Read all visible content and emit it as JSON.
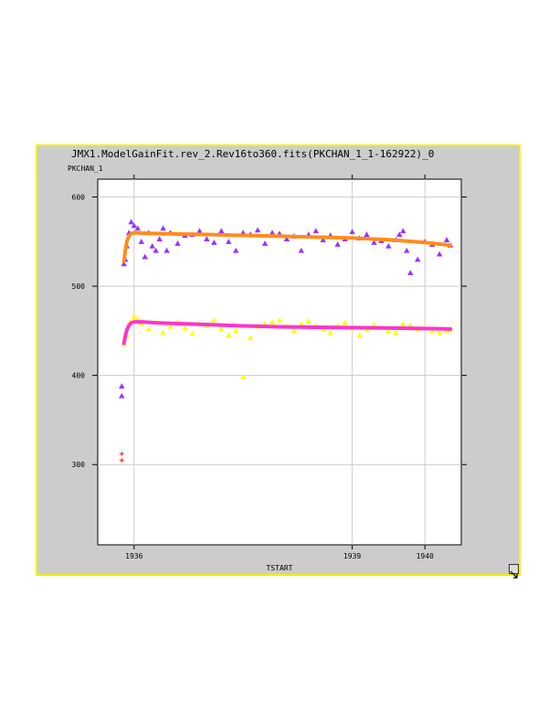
{
  "colors": {
    "panel_bg": "#cccccc",
    "panel_border": "#f0f000",
    "plot_bg": "#ffffff",
    "grid": "#cccccc",
    "series_purple": "#9b30ff",
    "series_yellow": "#ffff00",
    "fit_orange": "#ff8c1a",
    "fit_magenta": "#ff33cc",
    "outlier_red": "#ff2020"
  },
  "icons": {
    "resize": "resize-arrow-icon"
  },
  "chart_data": {
    "type": "scatter",
    "title": "JMX1.ModelGainFit.rev_2.Rev16to360.fits(PKCHAN_1_1-162922)_0",
    "ylabel": "PKCHAN_1",
    "xlabel": "TSTART",
    "xlim": [
      1935.5,
      1940.5
    ],
    "ylim": [
      210,
      620
    ],
    "xticks": [
      1936,
      1939,
      1940
    ],
    "xtick_labels": [
      "1936",
      "1939",
      "1940"
    ],
    "yticks": [
      300,
      400,
      500,
      600
    ],
    "ytick_labels": [
      "300",
      "400",
      "500",
      "600"
    ],
    "grid": true,
    "series": [
      {
        "marker": "triangle",
        "color": "#9b30ff",
        "x": [
          1935.86,
          1935.88,
          1935.9,
          1935.93,
          1935.96,
          1936.0,
          1936.05,
          1936.1,
          1936.15,
          1936.2,
          1936.25,
          1936.3,
          1936.35,
          1936.4,
          1936.45,
          1936.5,
          1936.6,
          1936.7,
          1936.8,
          1936.9,
          1937.0,
          1937.1,
          1937.2,
          1937.3,
          1937.4,
          1937.5,
          1937.6,
          1937.7,
          1937.8,
          1937.9,
          1938.0,
          1938.1,
          1938.2,
          1938.3,
          1938.4,
          1938.5,
          1938.6,
          1938.7,
          1938.8,
          1938.9,
          1939.0,
          1939.1,
          1939.2,
          1939.3,
          1939.4,
          1939.5,
          1939.6,
          1939.65,
          1939.7,
          1939.75,
          1939.8,
          1939.9,
          1940.0,
          1940.1,
          1940.2,
          1940.3,
          1940.35
        ],
        "y": [
          525,
          530,
          545,
          560,
          572,
          568,
          565,
          550,
          533,
          560,
          545,
          540,
          553,
          565,
          540,
          560,
          548,
          557,
          558,
          562,
          553,
          549,
          562,
          550,
          540,
          560,
          558,
          563,
          548,
          560,
          559,
          553,
          556,
          540,
          558,
          562,
          552,
          557,
          547,
          553,
          561,
          554,
          558,
          549,
          551,
          545,
          552,
          558,
          562,
          540,
          515,
          530,
          550,
          547,
          536,
          552,
          546
        ]
      },
      {
        "marker": "triangle",
        "color": "#ffff00",
        "x": [
          1935.86,
          1935.9,
          1935.95,
          1936.0,
          1936.05,
          1936.1,
          1936.2,
          1936.3,
          1936.4,
          1936.5,
          1936.6,
          1936.7,
          1936.8,
          1936.9,
          1937.0,
          1937.1,
          1937.2,
          1937.3,
          1937.4,
          1937.5,
          1937.6,
          1937.7,
          1937.8,
          1937.9,
          1938.0,
          1938.1,
          1938.2,
          1938.3,
          1938.4,
          1938.5,
          1938.6,
          1938.7,
          1938.8,
          1938.9,
          1939.0,
          1939.1,
          1939.2,
          1939.3,
          1939.4,
          1939.5,
          1939.6,
          1939.7,
          1939.8,
          1939.9,
          1940.0,
          1940.1,
          1940.2,
          1940.3,
          1940.35
        ],
        "y": [
          436,
          445,
          460,
          466,
          463,
          458,
          452,
          460,
          448,
          455,
          460,
          453,
          447,
          458,
          456,
          462,
          452,
          445,
          450,
          398,
          442,
          455,
          458,
          460,
          462,
          455,
          450,
          458,
          461,
          455,
          452,
          448,
          456,
          459,
          453,
          445,
          452,
          457,
          454,
          450,
          448,
          458,
          456,
          452,
          453,
          450,
          448,
          450,
          452
        ]
      },
      {
        "marker": "triangle",
        "color": "#9b30ff",
        "x": [
          1935.83,
          1935.83
        ],
        "y": [
          388,
          377
        ]
      },
      {
        "marker": "plus",
        "color": "#ff2020",
        "x": [
          1935.83,
          1935.83
        ],
        "y": [
          312,
          305
        ]
      },
      {
        "marker": "line",
        "color": "#ff8c1a",
        "x": [
          1935.86,
          1935.88,
          1935.9,
          1935.93,
          1935.96,
          1936.0,
          1936.1,
          1936.3,
          1936.6,
          1937.0,
          1937.5,
          1938.0,
          1938.5,
          1939.0,
          1939.5,
          1940.0,
          1940.35
        ],
        "y": [
          528,
          540,
          550,
          556,
          559,
          560,
          559.5,
          559,
          558.5,
          558,
          557,
          556,
          555,
          554,
          552,
          549,
          546
        ]
      },
      {
        "marker": "line",
        "color": "#ff33cc",
        "x": [
          1935.86,
          1935.88,
          1935.9,
          1935.93,
          1935.96,
          1936.0,
          1936.1,
          1936.3,
          1936.6,
          1937.0,
          1937.5,
          1938.0,
          1938.5,
          1939.0,
          1939.5,
          1940.0,
          1940.35
        ],
        "y": [
          436,
          444,
          451,
          456,
          459,
          460,
          460,
          459,
          458,
          457,
          455.5,
          454.5,
          454,
          453.5,
          453,
          452.5,
          452
        ]
      }
    ]
  }
}
